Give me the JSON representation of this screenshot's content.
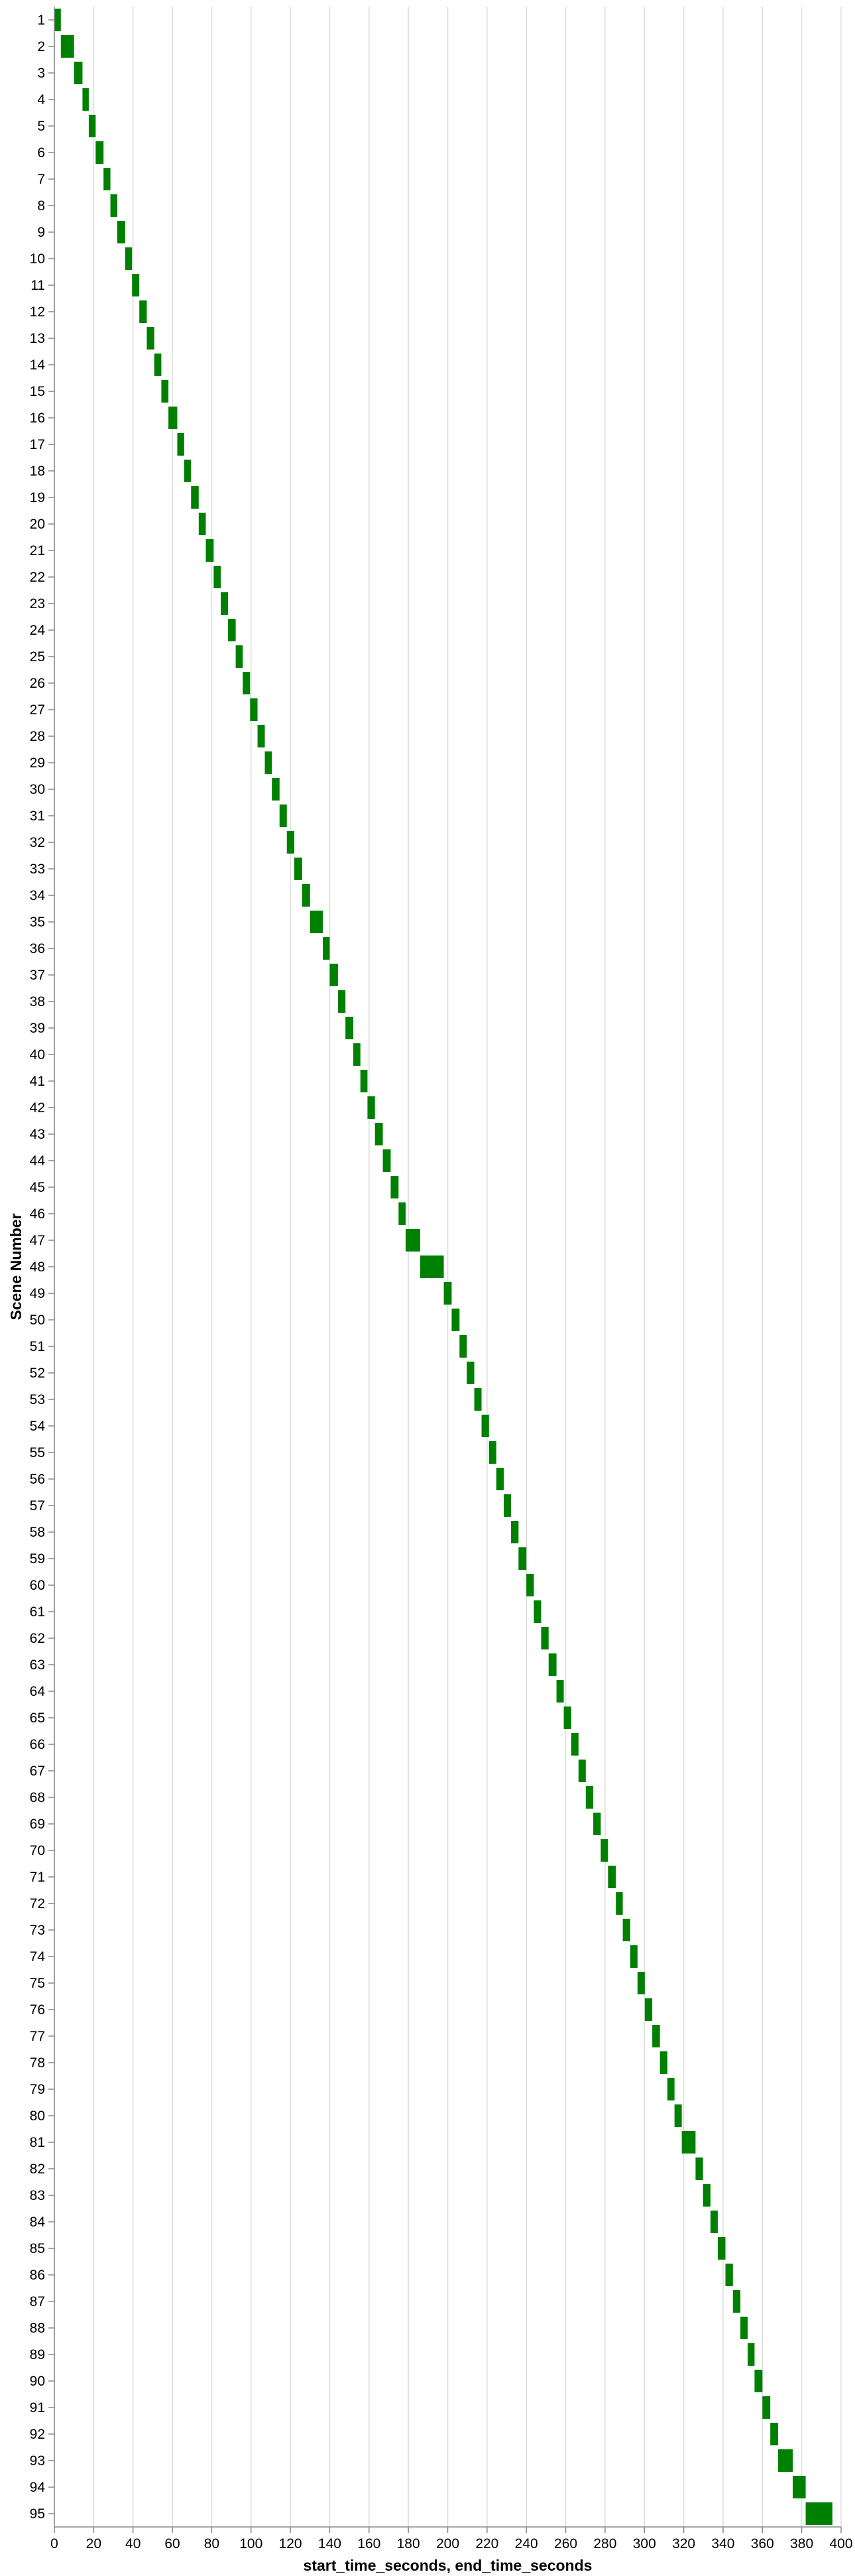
{
  "chart_data": {
    "type": "bar",
    "orientation": "horizontal-range",
    "title": "",
    "xlabel": "start_time_seconds, end_time_seconds",
    "ylabel": "Scene Number",
    "xlim": [
      0,
      400
    ],
    "x_ticks": [
      0,
      20,
      40,
      60,
      80,
      100,
      120,
      140,
      160,
      180,
      200,
      220,
      240,
      260,
      280,
      300,
      320,
      340,
      360,
      380,
      400
    ],
    "grid": true,
    "bar_color": "#008000",
    "grid_color": "#dddddd",
    "categories": [
      "1",
      "2",
      "3",
      "4",
      "5",
      "6",
      "7",
      "8",
      "9",
      "10",
      "11",
      "12",
      "13",
      "14",
      "15",
      "16",
      "17",
      "18",
      "19",
      "20",
      "21",
      "22",
      "23",
      "24",
      "25",
      "26",
      "27",
      "28",
      "29",
      "30",
      "31",
      "32",
      "33",
      "34",
      "35",
      "36",
      "37",
      "38",
      "39",
      "40",
      "41",
      "42",
      "43",
      "44",
      "45",
      "46",
      "47",
      "48",
      "49",
      "50",
      "51",
      "52",
      "53",
      "54",
      "55",
      "56",
      "57",
      "58",
      "59",
      "60",
      "61",
      "62",
      "63",
      "64",
      "65",
      "66",
      "67",
      "68",
      "69",
      "70",
      "71",
      "72",
      "73",
      "74",
      "75",
      "76",
      "77",
      "78",
      "79",
      "80",
      "81",
      "82",
      "83",
      "84",
      "85",
      "86",
      "87",
      "88",
      "89",
      "90",
      "91",
      "92",
      "93",
      "94",
      "95"
    ],
    "start_times": [
      0,
      3.3,
      10,
      14.3,
      17.5,
      21,
      25,
      28.5,
      32,
      36,
      39.5,
      43.2,
      47,
      50.8,
      54.4,
      58,
      62.5,
      66,
      69.5,
      73.4,
      77,
      81,
      84.6,
      88.3,
      92.2,
      95.8,
      99.5,
      103.3,
      107,
      110.6,
      114.5,
      118.2,
      122,
      126,
      130,
      136.5,
      140,
      144.2,
      148,
      152,
      155.6,
      159.2,
      163,
      167,
      171,
      175,
      178.6,
      186,
      198,
      202,
      206,
      209.7,
      213.5,
      217.2,
      221,
      224.7,
      228.5,
      232.2,
      236,
      240,
      243.8,
      247.5,
      251.3,
      255.3,
      259,
      262.8,
      266.5,
      270.2,
      274,
      277.8,
      281.5,
      285.5,
      289,
      292.8,
      296.5,
      300.2,
      304,
      307.9,
      311.7,
      315.3,
      319,
      326,
      329.8,
      333.6,
      337.3,
      341.2,
      345,
      348.8,
      352.5,
      356,
      360,
      364,
      368,
      375.4,
      382
    ],
    "end_times": [
      3.3,
      10,
      14.3,
      17.5,
      21,
      25,
      28.5,
      32,
      36,
      39.5,
      43.2,
      47,
      50.8,
      54.4,
      58,
      62.5,
      66,
      69.5,
      73.4,
      77,
      81,
      84.6,
      88.3,
      92.2,
      95.8,
      99.5,
      103.3,
      107,
      110.6,
      114.5,
      118.2,
      122,
      126,
      130,
      136.5,
      140,
      144.2,
      148,
      152,
      155.6,
      159.2,
      163,
      167,
      171,
      175,
      178.6,
      186,
      198,
      202,
      206,
      209.7,
      213.5,
      217.2,
      221,
      224.7,
      228.5,
      232.2,
      236,
      240,
      243.8,
      247.5,
      251.3,
      255.3,
      259,
      262.8,
      266.5,
      270.2,
      274,
      277.8,
      281.5,
      285.5,
      289,
      292.8,
      296.5,
      300.2,
      304,
      307.9,
      311.7,
      315.3,
      319,
      326,
      329.8,
      333.6,
      337.3,
      341.2,
      345,
      348.8,
      352.5,
      356,
      360,
      364,
      368,
      375.4,
      382,
      395.6
    ]
  }
}
